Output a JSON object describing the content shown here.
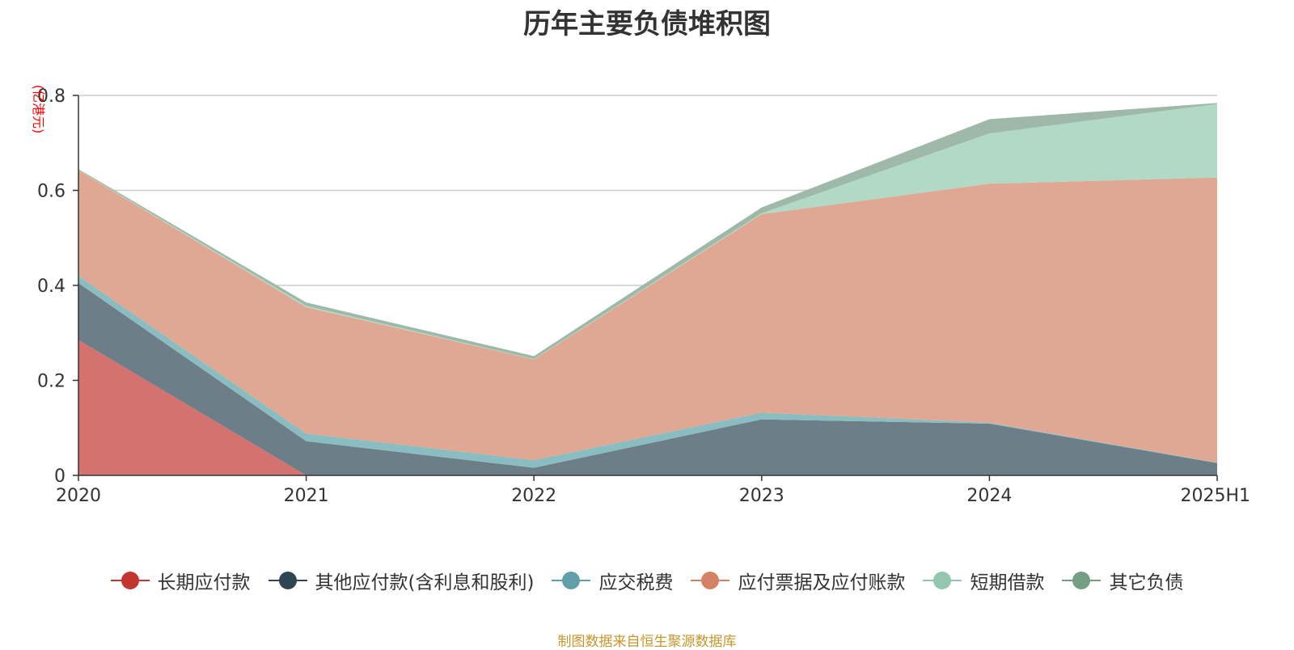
{
  "chart_data": {
    "type": "area",
    "stacked": true,
    "title": "历年主要负债堆积图",
    "ylabel": "(亿港元)",
    "xlabel": "",
    "ylim": [
      0,
      0.8
    ],
    "yticks": [
      0,
      0.2,
      0.4,
      0.6,
      0.8
    ],
    "ytick_labels": [
      "0",
      "0.2",
      "0.4",
      "0.6",
      "0.8"
    ],
    "categories": [
      "2020",
      "2021",
      "2022",
      "2023",
      "2024",
      "2025H1"
    ],
    "grid": true,
    "legend_position": "bottom",
    "series": [
      {
        "name": "长期应付款",
        "color": "#c23531",
        "fill": "#d47270",
        "values": [
          0.285,
          0.0,
          0.0,
          0.0,
          0.0,
          0.0
        ]
      },
      {
        "name": "其他应付款(含利息和股利)",
        "color": "#2f4554",
        "fill": "#6e7e89",
        "values": [
          0.12,
          0.072,
          0.016,
          0.118,
          0.109,
          0.026
        ]
      },
      {
        "name": "应交税费",
        "color": "#61a0a8",
        "fill": "#89bdc2",
        "values": [
          0.015,
          0.016,
          0.016,
          0.014,
          0.002,
          0.001
        ]
      },
      {
        "name": "应付票据及应付账款",
        "color": "#d48265",
        "fill": "#e0a792",
        "values": [
          0.222,
          0.266,
          0.212,
          0.418,
          0.503,
          0.6
        ]
      },
      {
        "name": "短期借款",
        "color": "#91c7ae",
        "fill": "#b2d8c6",
        "values": [
          0.001,
          0.003,
          0.001,
          0.002,
          0.106,
          0.155
        ]
      },
      {
        "name": "其它负债",
        "color": "#749f83",
        "fill": "#9eb9a7",
        "values": [
          0.002,
          0.007,
          0.006,
          0.012,
          0.03,
          0.002
        ]
      }
    ]
  },
  "source_note": "制图数据来自恒生聚源数据库"
}
